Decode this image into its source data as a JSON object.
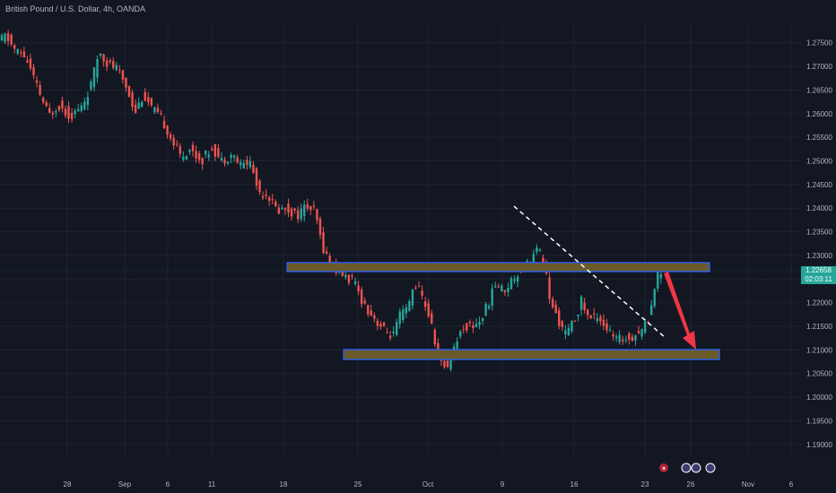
{
  "header": {
    "title": "British Pound / U.S. Dollar, 4h, OANDA"
  },
  "price_tag": {
    "price": "1.22658",
    "countdown": "02:03:11"
  },
  "colors": {
    "up": "#26a69a",
    "down": "#ef5350",
    "background": "#131722",
    "axis_text": "#b2b5be",
    "zone_fill": "#6b5a2a",
    "zone_border": "#2962ff",
    "arrow": "#f23645"
  },
  "chart_data": {
    "type": "candlestick",
    "title": "British Pound / U.S. Dollar, 4h, OANDA",
    "ylim": [
      1.1875,
      1.2795
    ],
    "y_ticks": [
      1.19,
      1.195,
      1.2,
      1.205,
      1.21,
      1.215,
      1.22,
      1.225,
      1.23,
      1.235,
      1.24,
      1.245,
      1.25,
      1.255,
      1.26,
      1.265,
      1.27,
      1.275
    ],
    "y_tick_labels": [
      "1.19000",
      "1.19500",
      "1.20000",
      "1.20500",
      "1.21000",
      "1.21500",
      "1.22000",
      "1.22500",
      "1.23000",
      "1.23500",
      "1.24000",
      "1.24500",
      "1.25000",
      "1.25500",
      "1.26000",
      "1.26500",
      "1.27000",
      "1.27500"
    ],
    "x_tick_labels": [
      "28",
      "Sep",
      "6",
      "11",
      "18",
      "25",
      "Oct",
      "9",
      "16",
      "23",
      "26",
      "Nov",
      "6"
    ],
    "path_points": [
      [
        0,
        1.2748
      ],
      [
        10,
        1.2765
      ],
      [
        20,
        1.2735
      ],
      [
        32,
        1.272
      ],
      [
        45,
        1.2655
      ],
      [
        58,
        1.2595
      ],
      [
        68,
        1.262
      ],
      [
        82,
        1.2595
      ],
      [
        95,
        1.2615
      ],
      [
        106,
        1.2665
      ],
      [
        114,
        1.2735
      ],
      [
        124,
        1.2705
      ],
      [
        134,
        1.2695
      ],
      [
        145,
        1.2655
      ],
      [
        154,
        1.2605
      ],
      [
        163,
        1.264
      ],
      [
        175,
        1.2605
      ],
      [
        185,
        1.2585
      ],
      [
        195,
        1.2545
      ],
      [
        205,
        1.251
      ],
      [
        215,
        1.2525
      ],
      [
        228,
        1.25
      ],
      [
        240,
        1.253
      ],
      [
        250,
        1.25
      ],
      [
        262,
        1.2515
      ],
      [
        272,
        1.249
      ],
      [
        282,
        1.25
      ],
      [
        292,
        1.2435
      ],
      [
        302,
        1.243
      ],
      [
        312,
        1.2395
      ],
      [
        322,
        1.24
      ],
      [
        335,
        1.2385
      ],
      [
        345,
        1.2405
      ],
      [
        355,
        1.239
      ],
      [
        362,
        1.2325
      ],
      [
        372,
        1.228
      ],
      [
        385,
        1.226
      ],
      [
        397,
        1.2245
      ],
      [
        410,
        1.2195
      ],
      [
        422,
        1.2165
      ],
      [
        432,
        1.214
      ],
      [
        442,
        1.213
      ],
      [
        450,
        1.2175
      ],
      [
        458,
        1.2185
      ],
      [
        466,
        1.2245
      ],
      [
        472,
        1.222
      ],
      [
        480,
        1.2185
      ],
      [
        487,
        1.213
      ],
      [
        494,
        1.207
      ],
      [
        502,
        1.2065
      ],
      [
        510,
        1.211
      ],
      [
        520,
        1.215
      ],
      [
        530,
        1.215
      ],
      [
        540,
        1.2165
      ],
      [
        548,
        1.22
      ],
      [
        556,
        1.224
      ],
      [
        565,
        1.2225
      ],
      [
        575,
        1.225
      ],
      [
        585,
        1.2275
      ],
      [
        595,
        1.229
      ],
      [
        603,
        1.2315
      ],
      [
        610,
        1.2285
      ],
      [
        618,
        1.219
      ],
      [
        625,
        1.217
      ],
      [
        633,
        1.213
      ],
      [
        642,
        1.2155
      ],
      [
        652,
        1.2205
      ],
      [
        660,
        1.2165
      ],
      [
        670,
        1.2175
      ],
      [
        680,
        1.2145
      ],
      [
        690,
        1.212
      ],
      [
        700,
        1.2125
      ],
      [
        710,
        1.213
      ],
      [
        720,
        1.2145
      ],
      [
        728,
        1.2175
      ],
      [
        733,
        1.2235
      ],
      [
        738,
        1.2262
      ]
    ]
  }
}
